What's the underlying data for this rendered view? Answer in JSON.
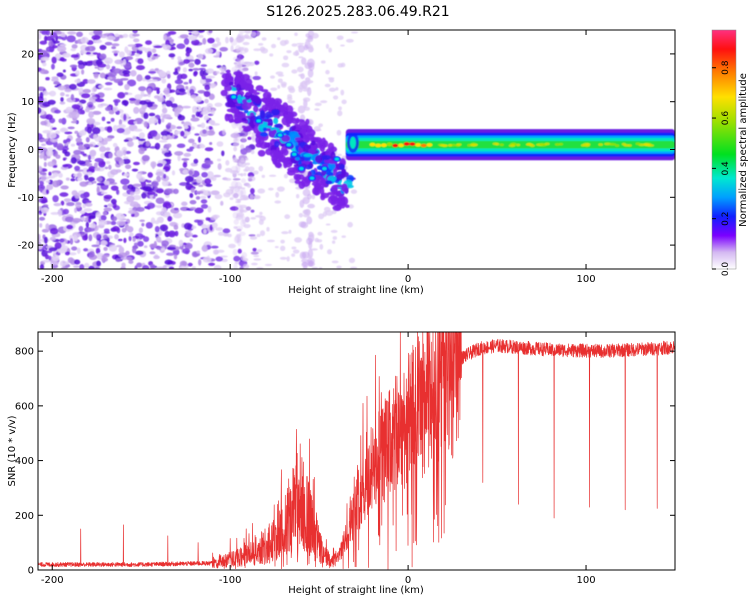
{
  "title": "S126.2025.283.06.49.R21",
  "colors": {
    "signal": "#e83030",
    "axis": "#000000",
    "scatter_light": "#d9c2f0",
    "scatter_mid": "#a070e0",
    "scatter_dark": "#6a1ae0"
  },
  "chart_data": [
    {
      "type": "heatmap",
      "name": "spectrogram",
      "xlabel": "Height of straight line (km)",
      "ylabel": "Frequency (Hz)",
      "xlim": [
        -208,
        150
      ],
      "ylim": [
        -25,
        25
      ],
      "xticks": [
        -200,
        -100,
        0,
        100
      ],
      "xtick_labels": [
        "-200",
        "-100",
        "0",
        "100"
      ],
      "yticks": [
        -20,
        -10,
        0,
        10,
        20
      ],
      "ytick_labels": [
        "-20",
        "-10",
        "0",
        "10",
        "20"
      ],
      "colorbar": {
        "label": "Normalized spectral amplitude",
        "range": [
          0,
          0.95
        ],
        "ticks": [
          0,
          0.2,
          0.4,
          0.6,
          0.8
        ],
        "tick_labels": [
          "0.0",
          "0.2",
          "0.4",
          "0.6",
          "0.8"
        ]
      },
      "features": {
        "noise_region_x": [
          -208,
          -110
        ],
        "chirp_start": {
          "x": -100,
          "f": 12
        },
        "chirp_end": {
          "x": -35,
          "f": -8
        },
        "carrier_start_x": -35,
        "carrier_freq": 1,
        "carrier_peak_x": [
          -20,
          15
        ]
      }
    },
    {
      "type": "line",
      "name": "snr",
      "xlabel": "Height of straight line (km)",
      "ylabel": "SNR (10 * v/v)",
      "xlim": [
        -208,
        150
      ],
      "ylim": [
        0,
        870
      ],
      "xticks": [
        -200,
        -100,
        0,
        100
      ],
      "xtick_labels": [
        "-200",
        "-100",
        "0",
        "100"
      ],
      "yticks": [
        0,
        200,
        400,
        600,
        800
      ],
      "ytick_labels": [
        "0",
        "200",
        "400",
        "600",
        "800"
      ],
      "envelope": [
        {
          "x": -208,
          "y": 20
        },
        {
          "x": -150,
          "y": 20
        },
        {
          "x": -110,
          "y": 25
        },
        {
          "x": -95,
          "y": 45
        },
        {
          "x": -85,
          "y": 70
        },
        {
          "x": -75,
          "y": 110
        },
        {
          "x": -68,
          "y": 180
        },
        {
          "x": -62,
          "y": 260
        },
        {
          "x": -58,
          "y": 230
        },
        {
          "x": -52,
          "y": 120
        },
        {
          "x": -47,
          "y": 50
        },
        {
          "x": -42,
          "y": 30
        },
        {
          "x": -38,
          "y": 60
        },
        {
          "x": -33,
          "y": 160
        },
        {
          "x": -28,
          "y": 260
        },
        {
          "x": -22,
          "y": 340
        },
        {
          "x": -15,
          "y": 420
        },
        {
          "x": -8,
          "y": 480
        },
        {
          "x": 0,
          "y": 550
        },
        {
          "x": 8,
          "y": 610
        },
        {
          "x": 15,
          "y": 660
        },
        {
          "x": 22,
          "y": 720
        },
        {
          "x": 30,
          "y": 775
        },
        {
          "x": 40,
          "y": 810
        },
        {
          "x": 50,
          "y": 820
        },
        {
          "x": 80,
          "y": 805
        },
        {
          "x": 110,
          "y": 800
        },
        {
          "x": 140,
          "y": 810
        },
        {
          "x": 150,
          "y": 815
        }
      ],
      "spikes_up": [
        {
          "x": -184,
          "y": 150
        },
        {
          "x": -160,
          "y": 165
        },
        {
          "x": -135,
          "y": 125
        },
        {
          "x": -118,
          "y": 100
        },
        {
          "x": -100,
          "y": 115
        }
      ],
      "dips": [
        {
          "x": 0,
          "y": 90
        },
        {
          "x": 42,
          "y": 320
        },
        {
          "x": 62,
          "y": 240
        },
        {
          "x": 82,
          "y": 190
        },
        {
          "x": 102,
          "y": 230
        },
        {
          "x": 122,
          "y": 220
        },
        {
          "x": 140,
          "y": 225
        }
      ]
    }
  ]
}
